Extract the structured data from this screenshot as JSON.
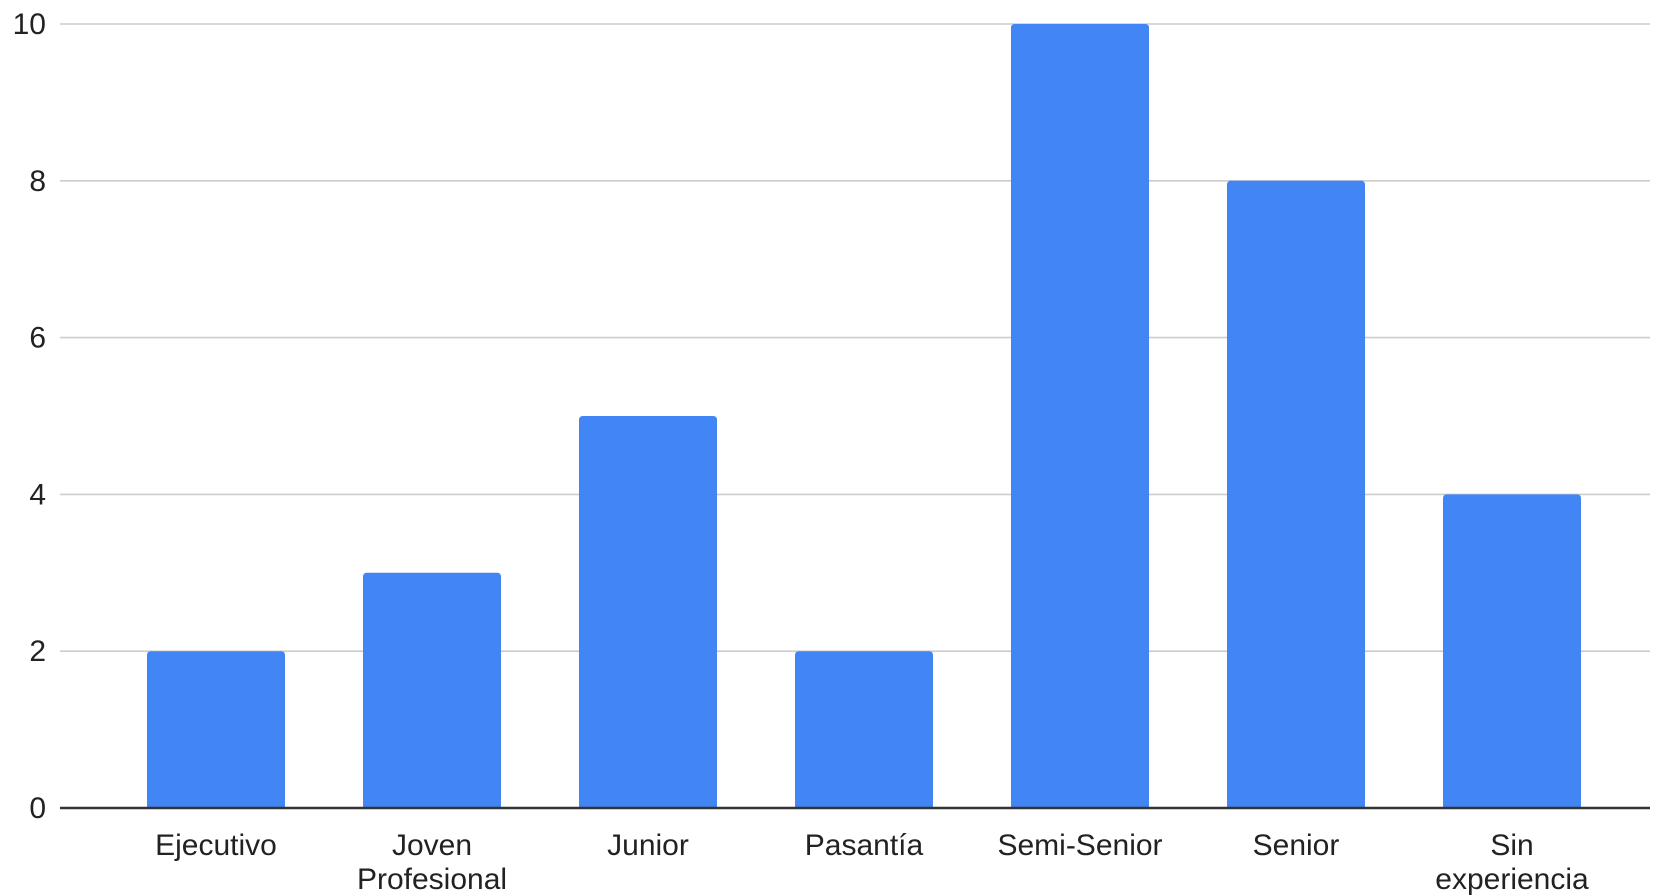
{
  "chart_data": {
    "type": "bar",
    "title": "",
    "xlabel": "",
    "ylabel": "",
    "categories": [
      "Ejecutivo",
      "Joven Profesional",
      "Junior",
      "Pasantía",
      "Semi-Senior",
      "Senior",
      "Sin experiencia"
    ],
    "category_lines": [
      [
        "Ejecutivo"
      ],
      [
        "Joven",
        "Profesional"
      ],
      [
        "Junior"
      ],
      [
        "Pasantía"
      ],
      [
        "Semi-Senior"
      ],
      [
        "Senior"
      ],
      [
        "Sin",
        "experiencia"
      ]
    ],
    "values": [
      2,
      3,
      5,
      2,
      10,
      8,
      4
    ],
    "ylim": [
      0,
      10
    ],
    "yticks": [
      0,
      2,
      4,
      6,
      8,
      10
    ],
    "grid": true,
    "legend": "none",
    "bar_color": "#4285f4"
  }
}
